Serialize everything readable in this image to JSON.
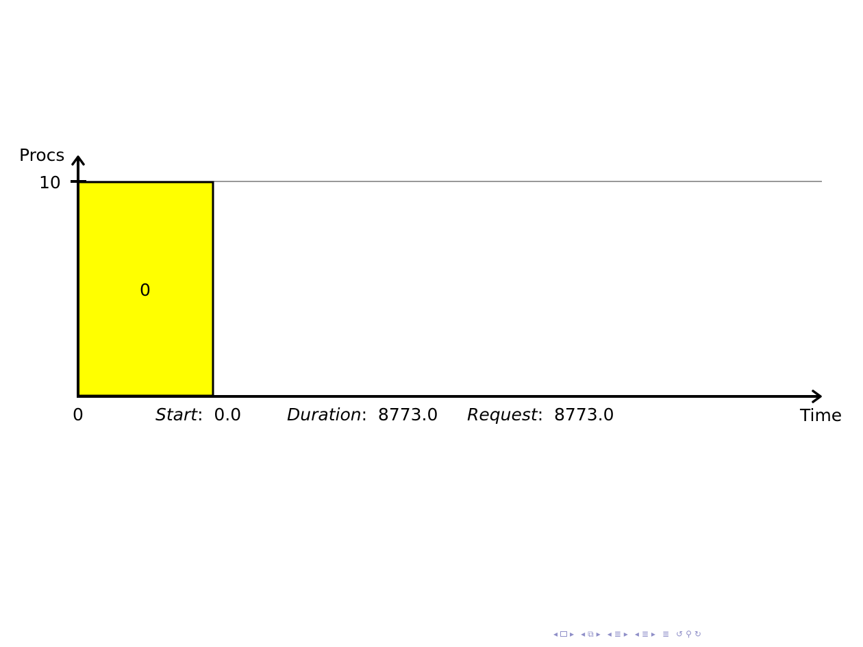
{
  "chart_data": {
    "type": "gantt",
    "ylabel": "Procs",
    "xlabel": "Time",
    "ytick": "10",
    "xtick": "0",
    "ymax": 10,
    "jobs": [
      {
        "id": "0",
        "start": 0.0,
        "duration": 8773.0,
        "procs": 10,
        "color": "#ffff00"
      }
    ],
    "info": {
      "start_label": "Start",
      "start_value": "0.0",
      "duration_label": "Duration",
      "duration_value": "8773.0",
      "request_label": "Request",
      "request_value": "8773.0"
    }
  },
  "nav": {
    "color": "#8f8fc8",
    "icons": [
      "prev-frame-icon",
      "frame-icon",
      "next-frame-icon",
      "prev-subsection-icon",
      "subsection-icon",
      "next-subsection-icon",
      "prev-section-icon",
      "section-icon",
      "next-section-icon",
      "prev-slide-icon",
      "slide-icon",
      "next-slide-icon",
      "align-icon",
      "back-icon",
      "search-icon",
      "forward-icon"
    ]
  }
}
